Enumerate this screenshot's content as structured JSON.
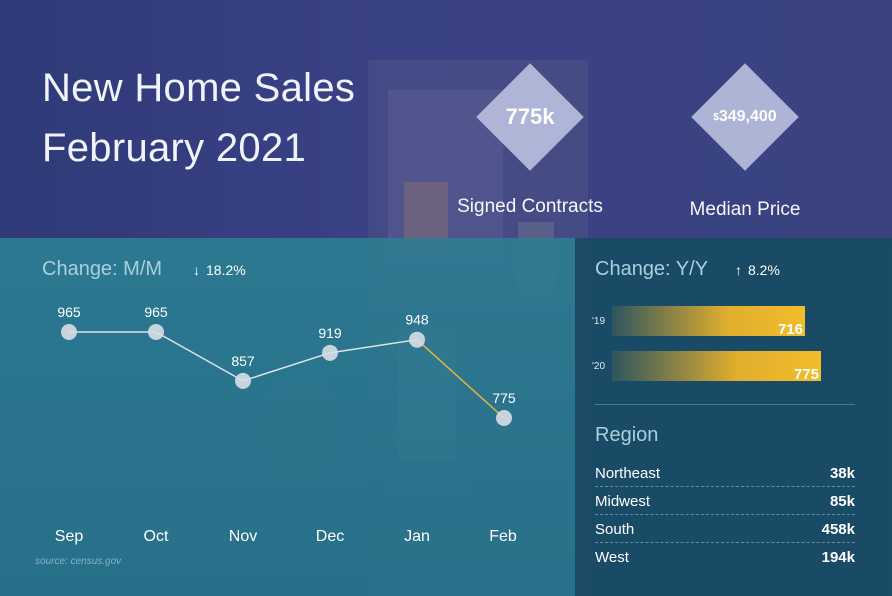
{
  "title": {
    "line1": "New Home Sales",
    "line2": "February 2021"
  },
  "stats": [
    {
      "value": "775k",
      "label": "Signed Contracts"
    },
    {
      "value_prefix": "$",
      "value": "349,400",
      "label": "Median Price"
    }
  ],
  "mm": {
    "title": "Change: M/M",
    "arrow": "↓",
    "change": "18.2%"
  },
  "yy": {
    "title": "Change: Y/Y",
    "arrow": "↑",
    "change": "8.2%"
  },
  "region": {
    "title": "Region",
    "rows": [
      {
        "name": "Northeast",
        "value": "38k"
      },
      {
        "name": "Midwest",
        "value": "85k"
      },
      {
        "name": "South",
        "value": "458k"
      },
      {
        "name": "West",
        "value": "194k"
      }
    ]
  },
  "source": "source: census.gov",
  "colors": {
    "top_band": "#3a4286",
    "line": "#dde3ea",
    "highlight": "#e8b43a",
    "bar": "#f2bc2c"
  },
  "chart_data": [
    {
      "type": "line",
      "title": "Change: M/M",
      "categories": [
        "Sep",
        "Oct",
        "Nov",
        "Dec",
        "Jan",
        "Feb"
      ],
      "values": [
        965,
        965,
        857,
        919,
        948,
        775
      ],
      "data_labels": [
        "965",
        "965",
        "857",
        "919",
        "948",
        "775"
      ],
      "ylim": [
        700,
        1000
      ],
      "grid": false
    },
    {
      "type": "bar",
      "orientation": "horizontal",
      "title": "Change: Y/Y",
      "categories": [
        "'19",
        "'20"
      ],
      "values": [
        716,
        775
      ],
      "data_labels": [
        "716",
        "775"
      ],
      "xlim": [
        0,
        800
      ]
    }
  ]
}
